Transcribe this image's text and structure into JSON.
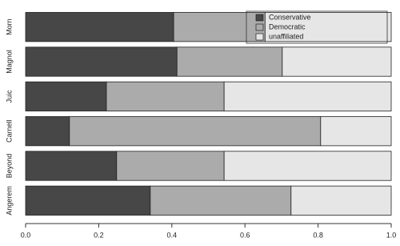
{
  "chart_data": {
    "type": "stacked-barh",
    "categories": [
      "Angerem",
      "Beyond",
      "Carnell",
      "Juic",
      "Magnol",
      "Morn"
    ],
    "series": [
      {
        "name": "Conservative",
        "color": "#474747",
        "values": [
          0.341,
          0.249,
          0.12,
          0.221,
          0.414,
          0.405
        ]
      },
      {
        "name": "Democratic",
        "color": "#ababab",
        "values": [
          0.385,
          0.294,
          0.687,
          0.322,
          0.288,
          0.25
        ]
      },
      {
        "name": "unaffiliated",
        "color": "#e6e6e6",
        "values": [
          0.274,
          0.457,
          0.193,
          0.457,
          0.298,
          0.345
        ]
      }
    ],
    "xlim": [
      0,
      1
    ],
    "xticks": [
      {
        "value": 0,
        "label": "0.0"
      },
      0.2,
      0.4,
      0.6,
      0.8,
      {
        "value": 1,
        "label": "1.0"
      }
    ],
    "legend": "top-right"
  }
}
